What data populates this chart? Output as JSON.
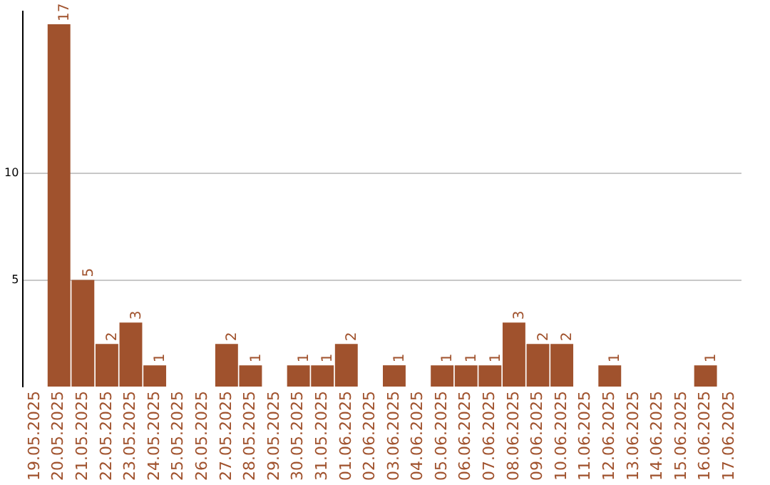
{
  "chart_data": {
    "type": "bar",
    "categories": [
      "19.05.2025",
      "20.05.2025",
      "21.05.2025",
      "22.05.2025",
      "23.05.2025",
      "24.05.2025",
      "25.05.2025",
      "26.05.2025",
      "27.05.2025",
      "28.05.2025",
      "29.05.2025",
      "30.05.2025",
      "31.05.2025",
      "01.06.2025",
      "02.06.2025",
      "03.06.2025",
      "04.06.2025",
      "05.06.2025",
      "06.06.2025",
      "07.06.2025",
      "08.06.2025",
      "09.06.2025",
      "10.06.2025",
      "11.06.2025",
      "12.06.2025",
      "13.06.2025",
      "14.06.2025",
      "15.06.2025",
      "16.06.2025",
      "17.06.2025"
    ],
    "values": [
      0,
      17,
      5,
      2,
      3,
      1,
      0,
      0,
      2,
      1,
      0,
      1,
      1,
      2,
      0,
      1,
      0,
      1,
      1,
      1,
      3,
      2,
      2,
      0,
      1,
      0,
      0,
      0,
      1,
      0
    ],
    "value_labels": [
      null,
      "17",
      "5",
      "2",
      "3",
      "1",
      null,
      null,
      "2",
      "1",
      null,
      "1",
      "1",
      "2",
      null,
      "1",
      null,
      "1",
      "1",
      "1",
      "3",
      "2",
      "2",
      null,
      "1",
      null,
      null,
      null,
      "1",
      null
    ],
    "color": "#a0522d",
    "ylim": [
      0,
      17.6
    ],
    "yticks": [
      5,
      10
    ],
    "grid": "y",
    "legend": false
  }
}
